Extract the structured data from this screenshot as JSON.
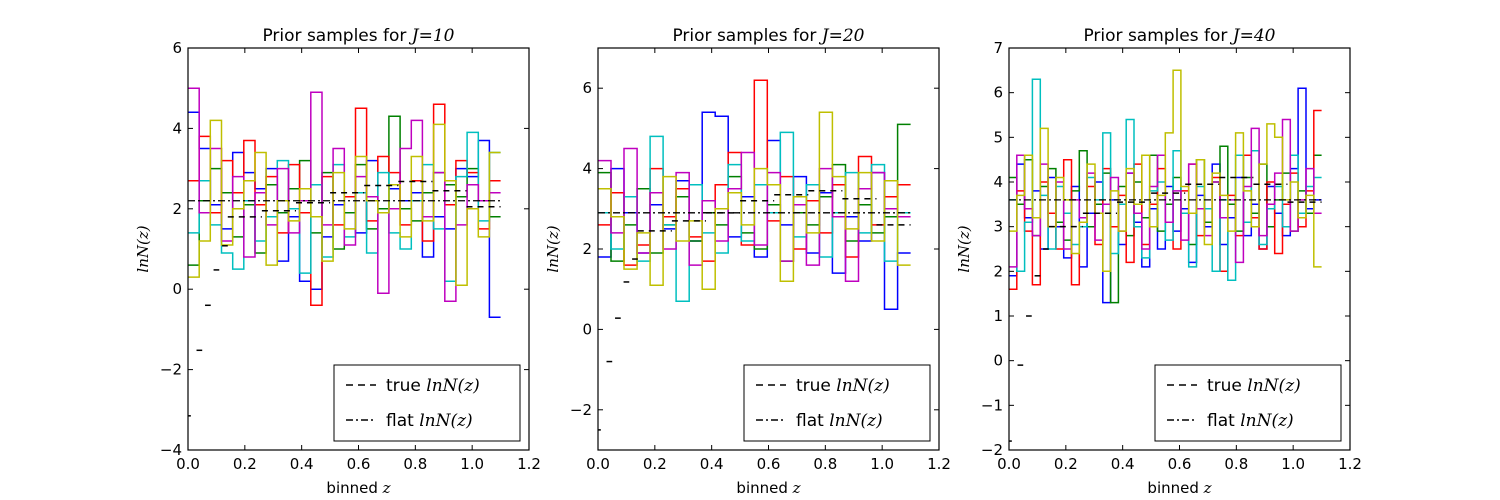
{
  "figure": {
    "background": "#ffffff",
    "series_colors": [
      "#0000ff",
      "#008000",
      "#ff0000",
      "#00bfbf",
      "#bf00bf",
      "#bfbf00"
    ]
  },
  "chart_data": [
    {
      "type": "line",
      "title": "Prior samples for J=10",
      "title_prefix": "Prior samples for ",
      "title_math": "J=10",
      "xlabel_prefix": "binned ",
      "xlabel_math": "z",
      "ylabel": "lnN(z)",
      "xlim": [
        0.0,
        1.2
      ],
      "ylim": [
        -4,
        6
      ],
      "xticks": [
        "0.0",
        "0.2",
        "0.4",
        "0.6",
        "0.8",
        "1.0",
        "1.2"
      ],
      "yticks": [
        "−4",
        "−2",
        "0",
        "2",
        "4",
        "6"
      ],
      "ytick_values": [
        -4,
        -2,
        0,
        2,
        4,
        6
      ],
      "xtick_values": [
        0.0,
        0.2,
        0.4,
        0.6,
        0.8,
        1.0,
        1.2
      ],
      "legend": {
        "location": "lower right",
        "entries": [
          {
            "prefix": "true ",
            "math": "lnN(z)",
            "style": "dashed"
          },
          {
            "prefix": "flat ",
            "math": "lnN(z)",
            "style": "dashdot"
          }
        ]
      },
      "true_steps": [
        {
          "x0": 0.0,
          "x1": 0.01,
          "y": -3.15
        },
        {
          "x0": 0.03,
          "x1": 0.05,
          "y": -1.52
        },
        {
          "x0": 0.06,
          "x1": 0.08,
          "y": -0.4
        },
        {
          "x0": 0.09,
          "x1": 0.11,
          "y": 0.48
        },
        {
          "x0": 0.12,
          "x1": 0.14,
          "y": 1.08
        },
        {
          "x0": 0.14,
          "x1": 0.26,
          "y": 1.8
        },
        {
          "x0": 0.26,
          "x1": 0.38,
          "y": 1.95
        },
        {
          "x0": 0.38,
          "x1": 0.5,
          "y": 2.15
        },
        {
          "x0": 0.5,
          "x1": 0.62,
          "y": 2.4
        },
        {
          "x0": 0.62,
          "x1": 0.74,
          "y": 2.58
        },
        {
          "x0": 0.74,
          "x1": 0.86,
          "y": 2.68
        },
        {
          "x0": 0.86,
          "x1": 0.98,
          "y": 2.45
        },
        {
          "x0": 0.98,
          "x1": 1.1,
          "y": 2.05
        }
      ],
      "flat_level": 2.2,
      "flat_range": [
        0.0,
        1.1
      ],
      "samples": [
        {
          "color_index": 0,
          "values": [
            4.4,
            3.5,
            2.1,
            1.5,
            3.4,
            2.9,
            2.5,
            3.0,
            0.7,
            1.8,
            0.2,
            0.0,
            1.3,
            2.1,
            2.3,
            1.4,
            3.2,
            1.9,
            2.5,
            2.2,
            2.4,
            0.8,
            1.8,
            1.5,
            3.0,
            2.8,
            3.7,
            -0.7
          ]
        },
        {
          "color_index": 1,
          "values": [
            0.6,
            2.2,
            3.0,
            2.4,
            1.3,
            2.1,
            0.9,
            2.6,
            1.9,
            2.5,
            3.2,
            1.4,
            2.9,
            1.0,
            1.9,
            3.1,
            1.5,
            2.0,
            4.3,
            2.0,
            1.7,
            2.4,
            2.9,
            2.6,
            2.3,
            3.0,
            2.2,
            1.8
          ]
        },
        {
          "color_index": 2,
          "values": [
            2.7,
            3.8,
            1.9,
            3.2,
            2.4,
            3.7,
            2.1,
            2.8,
            1.4,
            3.1,
            1.9,
            -0.4,
            2.8,
            1.6,
            2.3,
            4.5,
            1.7,
            3.3,
            2.9,
            1.6,
            2.7,
            1.2,
            4.6,
            2.1,
            3.2,
            2.9,
            1.5,
            2.7
          ]
        },
        {
          "color_index": 3,
          "values": [
            1.4,
            2.7,
            1.6,
            0.9,
            0.5,
            2.2,
            1.2,
            1.8,
            3.2,
            2.0,
            0.4,
            2.6,
            0.8,
            3.1,
            1.3,
            2.4,
            0.9,
            2.9,
            1.4,
            1.0,
            2.2,
            3.1,
            1.5,
            0.2,
            2.8,
            3.9,
            1.7,
            3.4
          ]
        },
        {
          "color_index": 4,
          "values": [
            5.0,
            1.9,
            3.5,
            1.2,
            2.8,
            0.8,
            2.4,
            1.6,
            3.0,
            1.4,
            2.2,
            4.9,
            1.6,
            3.5,
            1.1,
            2.8,
            2.3,
            -0.1,
            2.0,
            3.5,
            4.2,
            1.8,
            2.9,
            -0.3,
            1.6,
            2.6,
            2.2,
            2.4
          ]
        },
        {
          "color_index": 5,
          "values": [
            0.3,
            1.2,
            4.2,
            1.1,
            2.0,
            2.7,
            3.4,
            0.6,
            2.2,
            1.7,
            2.5,
            1.8,
            0.7,
            2.9,
            1.5,
            3.3,
            2.2,
            1.9,
            2.6,
            1.3,
            3.3,
            1.7,
            4.1,
            2.7,
            0.1,
            2.0,
            1.3,
            3.4
          ]
        }
      ]
    },
    {
      "type": "line",
      "title": "Prior samples for J=20",
      "title_prefix": "Prior samples for ",
      "title_math": "J=20",
      "xlabel_prefix": "binned ",
      "xlabel_math": "z",
      "ylabel": "lnN(z)",
      "xlim": [
        0.0,
        1.2
      ],
      "ylim": [
        -3,
        7
      ],
      "xticks": [
        "0.0",
        "0.2",
        "0.4",
        "0.6",
        "0.8",
        "1.0",
        "1.2"
      ],
      "yticks": [
        "−2",
        "0",
        "2",
        "4",
        "6"
      ],
      "ytick_values": [
        -2,
        0,
        2,
        4,
        6
      ],
      "xtick_values": [
        0.0,
        0.2,
        0.4,
        0.6,
        0.8,
        1.0,
        1.2
      ],
      "legend": {
        "location": "lower right",
        "entries": [
          {
            "prefix": "true ",
            "math": "lnN(z)",
            "style": "dashed"
          },
          {
            "prefix": "flat ",
            "math": "lnN(z)",
            "style": "dashdot"
          }
        ]
      },
      "true_steps": [
        {
          "x0": 0.0,
          "x1": 0.01,
          "y": -2.5
        },
        {
          "x0": 0.03,
          "x1": 0.05,
          "y": -0.8
        },
        {
          "x0": 0.06,
          "x1": 0.08,
          "y": 0.28
        },
        {
          "x0": 0.09,
          "x1": 0.11,
          "y": 1.18
        },
        {
          "x0": 0.12,
          "x1": 0.14,
          "y": 1.75
        },
        {
          "x0": 0.14,
          "x1": 0.26,
          "y": 2.45
        },
        {
          "x0": 0.26,
          "x1": 0.38,
          "y": 2.7
        },
        {
          "x0": 0.38,
          "x1": 0.5,
          "y": 2.9
        },
        {
          "x0": 0.5,
          "x1": 0.62,
          "y": 3.2
        },
        {
          "x0": 0.62,
          "x1": 0.74,
          "y": 3.35
        },
        {
          "x0": 0.74,
          "x1": 0.86,
          "y": 3.45
        },
        {
          "x0": 0.86,
          "x1": 0.98,
          "y": 3.25
        },
        {
          "x0": 0.98,
          "x1": 1.1,
          "y": 2.6
        }
      ],
      "flat_level": 2.9,
      "flat_range": [
        0.0,
        1.1
      ],
      "samples": [
        {
          "color_index": 0,
          "values": [
            1.8,
            4.0,
            2.9,
            1.9,
            3.1,
            2.5,
            3.7,
            2.2,
            5.4,
            5.3,
            2.3,
            3.3,
            1.8,
            4.7,
            2.6,
            3.8,
            1.9,
            3.4,
            1.4,
            2.8,
            2.2,
            3.9,
            0.5,
            1.9
          ]
        },
        {
          "color_index": 1,
          "values": [
            3.9,
            1.7,
            2.6,
            3.5,
            1.9,
            2.6,
            3.3,
            2.2,
            2.9,
            2.6,
            3.8,
            2.4,
            2.0,
            3.1,
            1.7,
            2.9,
            2.6,
            3.3,
            4.1,
            2.2,
            3.1,
            2.4,
            2.8,
            5.1
          ]
        },
        {
          "color_index": 2,
          "values": [
            2.6,
            3.4,
            1.6,
            2.1,
            4.0,
            2.8,
            3.5,
            2.3,
            1.7,
            3.6,
            4.4,
            2.1,
            6.2,
            2.7,
            3.8,
            2.0,
            3.2,
            2.4,
            3.6,
            1.8,
            4.3,
            2.6,
            3.3,
            3.6
          ]
        },
        {
          "color_index": 3,
          "values": [
            2.9,
            2.0,
            3.3,
            1.7,
            4.8,
            2.6,
            0.7,
            3.6,
            2.4,
            1.9,
            4.1,
            2.2,
            3.6,
            2.9,
            4.9,
            2.3,
            3.6,
            1.8,
            2.9,
            3.9,
            2.4,
            4.1,
            1.7,
            2.9
          ]
        },
        {
          "color_index": 4,
          "values": [
            4.2,
            2.4,
            4.5,
            1.9,
            3.4,
            2.0,
            3.9,
            1.6,
            3.2,
            2.2,
            3.5,
            4.4,
            2.1,
            3.9,
            1.7,
            3.1,
            1.6,
            4.0,
            2.8,
            1.2,
            3.5,
            3.9,
            3.0,
            2.8
          ]
        },
        {
          "color_index": 5,
          "values": [
            3.5,
            2.8,
            1.5,
            2.4,
            1.1,
            3.8,
            2.2,
            2.7,
            1.0,
            3.0,
            3.4,
            2.6,
            4.0,
            3.6,
            1.2,
            3.3,
            2.4,
            5.4,
            3.8,
            2.5,
            3.9,
            2.2,
            3.7,
            1.6
          ]
        }
      ]
    },
    {
      "type": "line",
      "title": "Prior samples for J=40",
      "title_prefix": "Prior samples for ",
      "title_math": "J=40",
      "xlabel_prefix": "binned ",
      "xlabel_math": "z",
      "ylabel": "lnN(z)",
      "xlim": [
        0.0,
        1.2
      ],
      "ylim": [
        -2,
        7
      ],
      "xticks": [
        "0.0",
        "0.2",
        "0.4",
        "0.6",
        "0.8",
        "1.0",
        "1.2"
      ],
      "yticks": [
        "−2",
        "−1",
        "0",
        "1",
        "2",
        "3",
        "4",
        "5",
        "6",
        "7"
      ],
      "ytick_values": [
        -2,
        -1,
        0,
        1,
        2,
        3,
        4,
        5,
        6,
        7
      ],
      "xtick_values": [
        0.0,
        0.2,
        0.4,
        0.6,
        0.8,
        1.0,
        1.2
      ],
      "legend": {
        "location": "lower right",
        "entries": [
          {
            "prefix": "true ",
            "math": "lnN(z)",
            "style": "dashed"
          },
          {
            "prefix": "flat ",
            "math": "lnN(z)",
            "style": "dashdot"
          }
        ]
      },
      "true_steps": [
        {
          "x0": 0.0,
          "x1": 0.01,
          "y": -1.8
        },
        {
          "x0": 0.03,
          "x1": 0.05,
          "y": -0.1
        },
        {
          "x0": 0.06,
          "x1": 0.08,
          "y": 1.0
        },
        {
          "x0": 0.09,
          "x1": 0.11,
          "y": 1.9
        },
        {
          "x0": 0.12,
          "x1": 0.14,
          "y": 2.5
        },
        {
          "x0": 0.14,
          "x1": 0.26,
          "y": 3.0
        },
        {
          "x0": 0.26,
          "x1": 0.38,
          "y": 3.3
        },
        {
          "x0": 0.38,
          "x1": 0.5,
          "y": 3.55
        },
        {
          "x0": 0.5,
          "x1": 0.62,
          "y": 3.75
        },
        {
          "x0": 0.62,
          "x1": 0.74,
          "y": 3.95
        },
        {
          "x0": 0.74,
          "x1": 0.86,
          "y": 4.1
        },
        {
          "x0": 0.86,
          "x1": 0.98,
          "y": 3.95
        },
        {
          "x0": 0.98,
          "x1": 1.1,
          "y": 3.55
        }
      ],
      "flat_level": 3.6,
      "flat_range": [
        0.0,
        1.1
      ],
      "samples": [
        {
          "color_index": 0,
          "values": [
            1.9,
            4.4,
            3.2,
            3.8,
            2.5,
            4.1,
            3.0,
            2.3,
            3.9,
            2.1,
            3.3,
            4.0,
            1.3,
            3.6,
            2.6,
            4.2,
            3.1,
            2.1,
            3.4,
            2.5,
            3.9,
            2.9,
            3.4,
            2.2,
            3.7,
            3.0,
            4.4,
            2.6,
            3.2,
            4.1,
            2.8,
            3.5,
            2.5,
            3.9,
            3.3,
            2.8,
            4.3,
            6.1,
            3.4,
            3.6
          ]
        },
        {
          "color_index": 1,
          "values": [
            4.1,
            3.5,
            4.5,
            2.8,
            3.9,
            4.3,
            3.1,
            2.7,
            3.8,
            4.7,
            3.0,
            3.5,
            4.2,
            1.3,
            3.9,
            2.8,
            4.0,
            3.2,
            4.6,
            2.9,
            3.5,
            4.1,
            3.3,
            2.6,
            4.5,
            3.1,
            4.0,
            4.8,
            3.5,
            2.9,
            4.1,
            3.3,
            4.4,
            3.0,
            3.6,
            4.2,
            2.9,
            3.8,
            3.3,
            4.6
          ]
        },
        {
          "color_index": 2,
          "values": [
            1.6,
            3.8,
            2.9,
            1.7,
            4.0,
            3.3,
            2.5,
            4.5,
            1.7,
            3.1,
            3.9,
            2.6,
            4.3,
            3.0,
            3.7,
            2.2,
            4.4,
            2.6,
            3.5,
            4.3,
            3.1,
            2.5,
            3.8,
            4.4,
            2.8,
            3.4,
            4.1,
            2.0,
            3.7,
            2.8,
            4.6,
            3.2,
            2.5,
            4.0,
            2.4,
            3.5,
            4.2,
            3.0,
            3.8,
            5.6
          ]
        },
        {
          "color_index": 3,
          "values": [
            3.6,
            2.0,
            3.1,
            6.3,
            3.7,
            2.5,
            3.9,
            3.3,
            2.6,
            3.0,
            4.1,
            3.6,
            5.1,
            2.4,
            3.5,
            5.4,
            3.0,
            2.3,
            3.8,
            4.0,
            2.7,
            4.7,
            3.3,
            2.1,
            3.9,
            3.4,
            2.0,
            3.6,
            1.8,
            4.6,
            3.1,
            4.7,
            2.6,
            3.4,
            3.9,
            3.0,
            4.6,
            3.3,
            3.9,
            4.1
          ]
        },
        {
          "color_index": 4,
          "values": [
            2.1,
            4.6,
            3.4,
            2.8,
            4.4,
            3.0,
            4.0,
            2.5,
            3.6,
            3.2,
            4.2,
            2.7,
            3.5,
            4.1,
            2.9,
            4.2,
            3.3,
            2.5,
            3.9,
            4.6,
            3.1,
            3.8,
            2.7,
            4.4,
            3.4,
            2.8,
            4.0,
            3.2,
            3.6,
            2.2,
            3.9,
            5.2,
            2.8,
            3.5,
            4.2,
            5.4,
            2.9,
            3.6,
            4.3,
            3.3
          ]
        },
        {
          "color_index": 5,
          "values": [
            2.9,
            3.7,
            4.6,
            3.2,
            5.2,
            3.0,
            4.1,
            3.6,
            2.4,
            3.1,
            4.4,
            3.3,
            2.0,
            3.8,
            2.9,
            4.3,
            3.5,
            4.6,
            3.0,
            3.7,
            5.1,
            6.5,
            3.9,
            3.3,
            4.5,
            2.6,
            4.2,
            3.7,
            2.9,
            5.1,
            3.8,
            3.0,
            4.4,
            5.3,
            5.0,
            3.6,
            4.0,
            3.2,
            3.7,
            2.1
          ]
        }
      ]
    }
  ]
}
